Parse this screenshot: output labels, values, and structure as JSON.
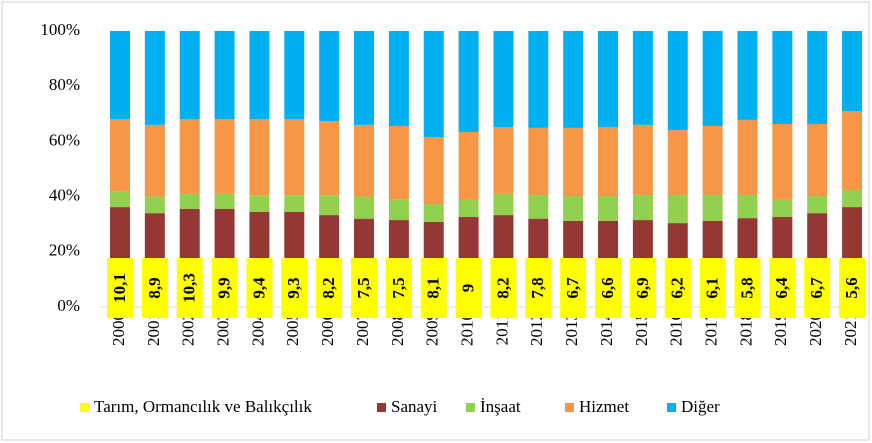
{
  "chart_data": {
    "type": "stacked_bar",
    "categories": [
      "2000",
      "2001",
      "2002",
      "2003",
      "2004",
      "2005",
      "2006",
      "2007",
      "2008",
      "2009",
      "2010",
      "2011",
      "2012",
      "2013",
      "2014",
      "2015",
      "2016",
      "2017",
      "2018",
      "2019",
      "2020",
      "2021"
    ],
    "series": [
      {
        "name": "Tarım, Ormancılık ve Balıkçılık",
        "color": "#ffff00",
        "values": [
          10.1,
          8.9,
          10.3,
          9.9,
          9.4,
          9.3,
          8.2,
          7.5,
          7.5,
          8.1,
          9,
          8.2,
          7.8,
          6.7,
          6.6,
          6.9,
          6.2,
          6.1,
          5.8,
          6.4,
          6.7,
          5.6
        ],
        "value_labels": [
          "10,1",
          "8,9",
          "10,3",
          "9,9",
          "9,4",
          "9,3",
          "8,2",
          "7,5",
          "7,5",
          "8,1",
          "9",
          "8,2",
          "7,8",
          "6,7",
          "6,6",
          "6,9",
          "6,2",
          "6,1",
          "5,8",
          "6,4",
          "6,7",
          "5,6"
        ]
      },
      {
        "name": "Sanayi",
        "color": "#953735",
        "values": [
          26.1,
          25.1,
          25.2,
          25.6,
          25.1,
          25.2,
          25.1,
          24.5,
          24,
          22.7,
          23.6,
          25.1,
          24.2,
          24.5,
          24.6,
          24.6,
          24.2,
          25.1,
          26.4,
          26.2,
          27.3,
          30.6
        ]
      },
      {
        "name": "İnşaat",
        "color": "#92d050",
        "values": [
          5.9,
          6,
          5.5,
          5.5,
          6,
          6,
          7.2,
          8,
          7.5,
          6.5,
          6.2,
          7.7,
          8.6,
          9,
          9,
          9.1,
          10.2,
          9.4,
          8.4,
          6.2,
          6.2,
          6.2
        ]
      },
      {
        "name": "Hizmet",
        "color": "#f79646",
        "values": [
          26,
          26,
          27,
          27,
          27.5,
          27.5,
          26.9,
          26,
          26.6,
          24.3,
          24.6,
          24.2,
          24.3,
          24.7,
          25,
          25.4,
          23.5,
          25,
          27.2,
          27.5,
          26.1,
          28.6
        ]
      },
      {
        "name": "Diğer",
        "color": "#00b0f0",
        "values": [
          31.9,
          34,
          32,
          32,
          32,
          32,
          32.6,
          34,
          34.4,
          38.4,
          36.6,
          34.8,
          35.1,
          35.1,
          34.8,
          34,
          35.9,
          34.4,
          32.2,
          33.7,
          33.7,
          29
        ]
      }
    ],
    "ylim": [
      0,
      100
    ],
    "yticks": [
      {
        "value": 0,
        "label": "0%"
      },
      {
        "value": 20,
        "label": "20%"
      },
      {
        "value": 40,
        "label": "40%"
      },
      {
        "value": 60,
        "label": "60%"
      },
      {
        "value": 80,
        "label": "80%"
      },
      {
        "value": 100,
        "label": "100%"
      }
    ],
    "grid": false,
    "legend": "bottom"
  }
}
